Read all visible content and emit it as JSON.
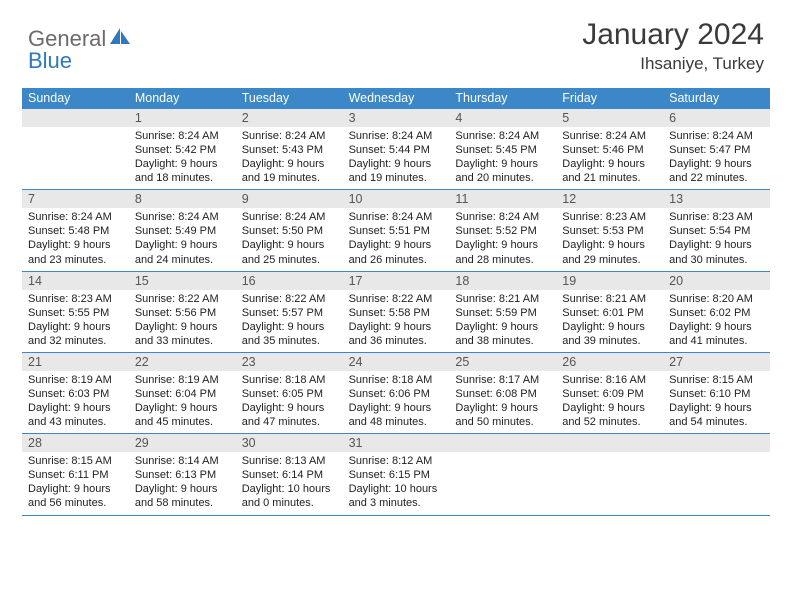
{
  "logo": {
    "general": "General",
    "blue": "Blue"
  },
  "title": "January 2024",
  "location": "Ihsaniye, Turkey",
  "colors": {
    "header_bg": "#3b87c8",
    "header_text": "#ffffff",
    "date_bar_bg": "#e8e8e8",
    "row_border": "#3b87c8",
    "logo_gray": "#6b6b6b",
    "logo_blue": "#2f78bd"
  },
  "day_names": [
    "Sunday",
    "Monday",
    "Tuesday",
    "Wednesday",
    "Thursday",
    "Friday",
    "Saturday"
  ],
  "weeks": [
    [
      {
        "date": "",
        "sunrise": "",
        "sunset": "",
        "daylight1": "",
        "daylight2": ""
      },
      {
        "date": "1",
        "sunrise": "Sunrise: 8:24 AM",
        "sunset": "Sunset: 5:42 PM",
        "daylight1": "Daylight: 9 hours",
        "daylight2": "and 18 minutes."
      },
      {
        "date": "2",
        "sunrise": "Sunrise: 8:24 AM",
        "sunset": "Sunset: 5:43 PM",
        "daylight1": "Daylight: 9 hours",
        "daylight2": "and 19 minutes."
      },
      {
        "date": "3",
        "sunrise": "Sunrise: 8:24 AM",
        "sunset": "Sunset: 5:44 PM",
        "daylight1": "Daylight: 9 hours",
        "daylight2": "and 19 minutes."
      },
      {
        "date": "4",
        "sunrise": "Sunrise: 8:24 AM",
        "sunset": "Sunset: 5:45 PM",
        "daylight1": "Daylight: 9 hours",
        "daylight2": "and 20 minutes."
      },
      {
        "date": "5",
        "sunrise": "Sunrise: 8:24 AM",
        "sunset": "Sunset: 5:46 PM",
        "daylight1": "Daylight: 9 hours",
        "daylight2": "and 21 minutes."
      },
      {
        "date": "6",
        "sunrise": "Sunrise: 8:24 AM",
        "sunset": "Sunset: 5:47 PM",
        "daylight1": "Daylight: 9 hours",
        "daylight2": "and 22 minutes."
      }
    ],
    [
      {
        "date": "7",
        "sunrise": "Sunrise: 8:24 AM",
        "sunset": "Sunset: 5:48 PM",
        "daylight1": "Daylight: 9 hours",
        "daylight2": "and 23 minutes."
      },
      {
        "date": "8",
        "sunrise": "Sunrise: 8:24 AM",
        "sunset": "Sunset: 5:49 PM",
        "daylight1": "Daylight: 9 hours",
        "daylight2": "and 24 minutes."
      },
      {
        "date": "9",
        "sunrise": "Sunrise: 8:24 AM",
        "sunset": "Sunset: 5:50 PM",
        "daylight1": "Daylight: 9 hours",
        "daylight2": "and 25 minutes."
      },
      {
        "date": "10",
        "sunrise": "Sunrise: 8:24 AM",
        "sunset": "Sunset: 5:51 PM",
        "daylight1": "Daylight: 9 hours",
        "daylight2": "and 26 minutes."
      },
      {
        "date": "11",
        "sunrise": "Sunrise: 8:24 AM",
        "sunset": "Sunset: 5:52 PM",
        "daylight1": "Daylight: 9 hours",
        "daylight2": "and 28 minutes."
      },
      {
        "date": "12",
        "sunrise": "Sunrise: 8:23 AM",
        "sunset": "Sunset: 5:53 PM",
        "daylight1": "Daylight: 9 hours",
        "daylight2": "and 29 minutes."
      },
      {
        "date": "13",
        "sunrise": "Sunrise: 8:23 AM",
        "sunset": "Sunset: 5:54 PM",
        "daylight1": "Daylight: 9 hours",
        "daylight2": "and 30 minutes."
      }
    ],
    [
      {
        "date": "14",
        "sunrise": "Sunrise: 8:23 AM",
        "sunset": "Sunset: 5:55 PM",
        "daylight1": "Daylight: 9 hours",
        "daylight2": "and 32 minutes."
      },
      {
        "date": "15",
        "sunrise": "Sunrise: 8:22 AM",
        "sunset": "Sunset: 5:56 PM",
        "daylight1": "Daylight: 9 hours",
        "daylight2": "and 33 minutes."
      },
      {
        "date": "16",
        "sunrise": "Sunrise: 8:22 AM",
        "sunset": "Sunset: 5:57 PM",
        "daylight1": "Daylight: 9 hours",
        "daylight2": "and 35 minutes."
      },
      {
        "date": "17",
        "sunrise": "Sunrise: 8:22 AM",
        "sunset": "Sunset: 5:58 PM",
        "daylight1": "Daylight: 9 hours",
        "daylight2": "and 36 minutes."
      },
      {
        "date": "18",
        "sunrise": "Sunrise: 8:21 AM",
        "sunset": "Sunset: 5:59 PM",
        "daylight1": "Daylight: 9 hours",
        "daylight2": "and 38 minutes."
      },
      {
        "date": "19",
        "sunrise": "Sunrise: 8:21 AM",
        "sunset": "Sunset: 6:01 PM",
        "daylight1": "Daylight: 9 hours",
        "daylight2": "and 39 minutes."
      },
      {
        "date": "20",
        "sunrise": "Sunrise: 8:20 AM",
        "sunset": "Sunset: 6:02 PM",
        "daylight1": "Daylight: 9 hours",
        "daylight2": "and 41 minutes."
      }
    ],
    [
      {
        "date": "21",
        "sunrise": "Sunrise: 8:19 AM",
        "sunset": "Sunset: 6:03 PM",
        "daylight1": "Daylight: 9 hours",
        "daylight2": "and 43 minutes."
      },
      {
        "date": "22",
        "sunrise": "Sunrise: 8:19 AM",
        "sunset": "Sunset: 6:04 PM",
        "daylight1": "Daylight: 9 hours",
        "daylight2": "and 45 minutes."
      },
      {
        "date": "23",
        "sunrise": "Sunrise: 8:18 AM",
        "sunset": "Sunset: 6:05 PM",
        "daylight1": "Daylight: 9 hours",
        "daylight2": "and 47 minutes."
      },
      {
        "date": "24",
        "sunrise": "Sunrise: 8:18 AM",
        "sunset": "Sunset: 6:06 PM",
        "daylight1": "Daylight: 9 hours",
        "daylight2": "and 48 minutes."
      },
      {
        "date": "25",
        "sunrise": "Sunrise: 8:17 AM",
        "sunset": "Sunset: 6:08 PM",
        "daylight1": "Daylight: 9 hours",
        "daylight2": "and 50 minutes."
      },
      {
        "date": "26",
        "sunrise": "Sunrise: 8:16 AM",
        "sunset": "Sunset: 6:09 PM",
        "daylight1": "Daylight: 9 hours",
        "daylight2": "and 52 minutes."
      },
      {
        "date": "27",
        "sunrise": "Sunrise: 8:15 AM",
        "sunset": "Sunset: 6:10 PM",
        "daylight1": "Daylight: 9 hours",
        "daylight2": "and 54 minutes."
      }
    ],
    [
      {
        "date": "28",
        "sunrise": "Sunrise: 8:15 AM",
        "sunset": "Sunset: 6:11 PM",
        "daylight1": "Daylight: 9 hours",
        "daylight2": "and 56 minutes."
      },
      {
        "date": "29",
        "sunrise": "Sunrise: 8:14 AM",
        "sunset": "Sunset: 6:13 PM",
        "daylight1": "Daylight: 9 hours",
        "daylight2": "and 58 minutes."
      },
      {
        "date": "30",
        "sunrise": "Sunrise: 8:13 AM",
        "sunset": "Sunset: 6:14 PM",
        "daylight1": "Daylight: 10 hours",
        "daylight2": "and 0 minutes."
      },
      {
        "date": "31",
        "sunrise": "Sunrise: 8:12 AM",
        "sunset": "Sunset: 6:15 PM",
        "daylight1": "Daylight: 10 hours",
        "daylight2": "and 3 minutes."
      },
      {
        "date": "",
        "sunrise": "",
        "sunset": "",
        "daylight1": "",
        "daylight2": ""
      },
      {
        "date": "",
        "sunrise": "",
        "sunset": "",
        "daylight1": "",
        "daylight2": ""
      },
      {
        "date": "",
        "sunrise": "",
        "sunset": "",
        "daylight1": "",
        "daylight2": ""
      }
    ]
  ]
}
